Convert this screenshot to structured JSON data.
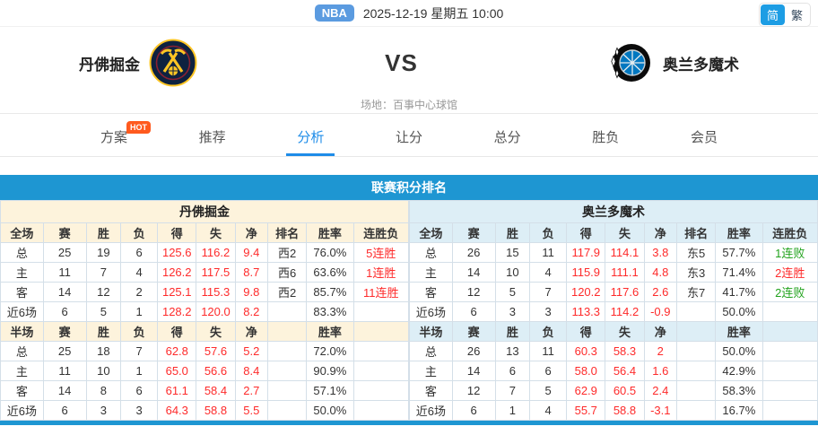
{
  "colors": {
    "accent_blue": "#1e96d2",
    "badge_blue": "#5b9be0",
    "lang_active": "#1d9de4",
    "tab_active": "#1e8ce8",
    "hot_badge": "#ff5a1e",
    "home_bg": "#fdf3dc",
    "away_bg": "#ddeef6",
    "positive_red": "#fe2b2b",
    "negative_green": "#21a21c",
    "border": "#d4dfe8"
  },
  "header": {
    "league_badge": "NBA",
    "datetime": "2025-12-19 星期五 10:00",
    "lang_simplified": "简",
    "lang_traditional": "繁"
  },
  "matchup": {
    "home_team": "丹佛掘金",
    "away_team": "奥兰多魔术",
    "vs": "VS",
    "venue": "场地：百事中心球馆"
  },
  "tabs": {
    "hot_badge": "HOT",
    "active_index": 2,
    "items": [
      {
        "label": "方案"
      },
      {
        "label": "推荐"
      },
      {
        "label": "分析"
      },
      {
        "label": "让分"
      },
      {
        "label": "总分"
      },
      {
        "label": "胜负"
      },
      {
        "label": "会员"
      }
    ]
  },
  "section_title": "联赛积分排名",
  "tables": {
    "full_headers": [
      "全场",
      "赛",
      "胜",
      "负",
      "得",
      "失",
      "净",
      "排名",
      "胜率",
      "连胜负"
    ],
    "half_headers": [
      "半场",
      "赛",
      "胜",
      "负",
      "得",
      "失",
      "净",
      "",
      "胜率",
      ""
    ],
    "left": {
      "team": "丹佛掘金",
      "full_rows": [
        [
          "总",
          "25",
          "19",
          "6",
          "125.6",
          "116.2",
          "9.4",
          "西2",
          "76.0%",
          "5连胜"
        ],
        [
          "主",
          "11",
          "7",
          "4",
          "126.2",
          "117.5",
          "8.7",
          "西6",
          "63.6%",
          "1连胜"
        ],
        [
          "客",
          "14",
          "12",
          "2",
          "125.1",
          "115.3",
          "9.8",
          "西2",
          "85.7%",
          "11连胜"
        ],
        [
          "近6场",
          "6",
          "5",
          "1",
          "128.2",
          "120.0",
          "8.2",
          "",
          "83.3%",
          ""
        ]
      ],
      "half_rows": [
        [
          "总",
          "25",
          "18",
          "7",
          "62.8",
          "57.6",
          "5.2",
          "",
          "72.0%",
          ""
        ],
        [
          "主",
          "11",
          "10",
          "1",
          "65.0",
          "56.6",
          "8.4",
          "",
          "90.9%",
          ""
        ],
        [
          "客",
          "14",
          "8",
          "6",
          "61.1",
          "58.4",
          "2.7",
          "",
          "57.1%",
          ""
        ],
        [
          "近6场",
          "6",
          "3",
          "3",
          "64.3",
          "58.8",
          "5.5",
          "",
          "50.0%",
          ""
        ]
      ]
    },
    "right": {
      "team": "奥兰多魔术",
      "full_rows": [
        [
          "总",
          "26",
          "15",
          "11",
          "117.9",
          "114.1",
          "3.8",
          "东5",
          "57.7%",
          "1连败"
        ],
        [
          "主",
          "14",
          "10",
          "4",
          "115.9",
          "111.1",
          "4.8",
          "东3",
          "71.4%",
          "2连胜"
        ],
        [
          "客",
          "12",
          "5",
          "7",
          "120.2",
          "117.6",
          "2.6",
          "东7",
          "41.7%",
          "2连败"
        ],
        [
          "近6场",
          "6",
          "3",
          "3",
          "113.3",
          "114.2",
          "-0.9",
          "",
          "50.0%",
          ""
        ]
      ],
      "half_rows": [
        [
          "总",
          "26",
          "13",
          "11",
          "60.3",
          "58.3",
          "2",
          "",
          "50.0%",
          ""
        ],
        [
          "主",
          "14",
          "6",
          "6",
          "58.0",
          "56.4",
          "1.6",
          "",
          "42.9%",
          ""
        ],
        [
          "客",
          "12",
          "7",
          "5",
          "62.9",
          "60.5",
          "2.4",
          "",
          "58.3%",
          ""
        ],
        [
          "近6场",
          "6",
          "1",
          "4",
          "55.7",
          "58.8",
          "-3.1",
          "",
          "16.7%",
          ""
        ]
      ]
    }
  }
}
